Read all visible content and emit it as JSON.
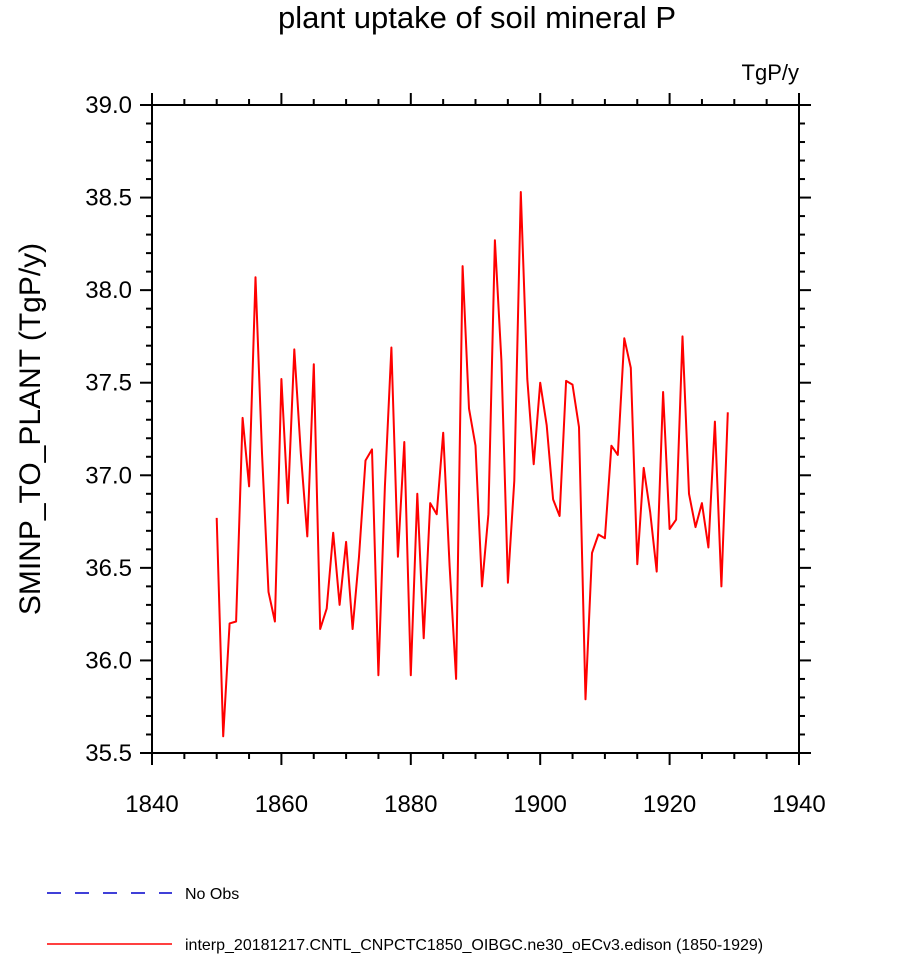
{
  "chart_data": {
    "type": "line",
    "title": "plant uptake of soil mineral P",
    "units": "TgP/y",
    "ylabel": "SMINP_TO_PLANT  (TgP/y)",
    "xlabel": "",
    "xlim": [
      1840,
      1940
    ],
    "ylim": [
      35.5,
      39.0
    ],
    "xticks": [
      1840,
      1860,
      1880,
      1900,
      1920,
      1940
    ],
    "yticks": [
      35.5,
      36.0,
      36.5,
      37.0,
      37.5,
      38.0,
      38.5,
      39.0
    ],
    "ytick_labels": [
      "35.5",
      "36.0",
      "36.5",
      "37.0",
      "37.5",
      "38.0",
      "38.5",
      "39.0"
    ],
    "grid": false,
    "legend_position": "bottom-left",
    "series": [
      {
        "name": "interp_20181217.CNTL_CNPCTC1850_OIBGC.ne30_oECv3.edison (1850-1929)",
        "color": "#ff0000",
        "style": "solid",
        "x": [
          1850,
          1851,
          1852,
          1853,
          1854,
          1855,
          1856,
          1857,
          1858,
          1859,
          1860,
          1861,
          1862,
          1863,
          1864,
          1865,
          1866,
          1867,
          1868,
          1869,
          1870,
          1871,
          1872,
          1873,
          1874,
          1875,
          1876,
          1877,
          1878,
          1879,
          1880,
          1881,
          1882,
          1883,
          1884,
          1885,
          1886,
          1887,
          1888,
          1889,
          1890,
          1891,
          1892,
          1893,
          1894,
          1895,
          1896,
          1897,
          1898,
          1899,
          1900,
          1901,
          1902,
          1903,
          1904,
          1905,
          1906,
          1907,
          1908,
          1909,
          1910,
          1911,
          1912,
          1913,
          1914,
          1915,
          1916,
          1917,
          1918,
          1919,
          1920,
          1921,
          1922,
          1923,
          1924,
          1925,
          1926,
          1927,
          1928,
          1929
        ],
        "y": [
          36.77,
          35.59,
          36.2,
          36.21,
          37.31,
          36.94,
          38.07,
          37.12,
          36.37,
          36.21,
          37.52,
          36.85,
          37.68,
          37.12,
          36.67,
          37.6,
          36.17,
          36.28,
          36.69,
          36.3,
          36.64,
          36.17,
          36.56,
          37.08,
          37.14,
          35.92,
          36.94,
          37.69,
          36.56,
          37.18,
          35.92,
          36.9,
          36.12,
          36.85,
          36.79,
          37.23,
          36.51,
          35.9,
          38.13,
          37.36,
          37.16,
          36.4,
          36.79,
          38.27,
          37.62,
          36.42,
          36.97,
          38.53,
          37.52,
          37.06,
          37.5,
          37.27,
          36.87,
          36.78,
          37.51,
          37.49,
          37.26,
          35.79,
          36.58,
          36.68,
          36.66,
          37.16,
          37.11,
          37.74,
          37.58,
          36.52,
          37.04,
          36.8,
          36.48,
          37.45,
          36.71,
          36.76,
          37.75,
          36.9,
          36.72,
          36.85,
          36.61,
          37.29,
          36.4,
          37.34
        ]
      },
      {
        "name": "No Obs",
        "color": "#0000cc",
        "style": "dashed",
        "x": [],
        "y": []
      }
    ]
  }
}
